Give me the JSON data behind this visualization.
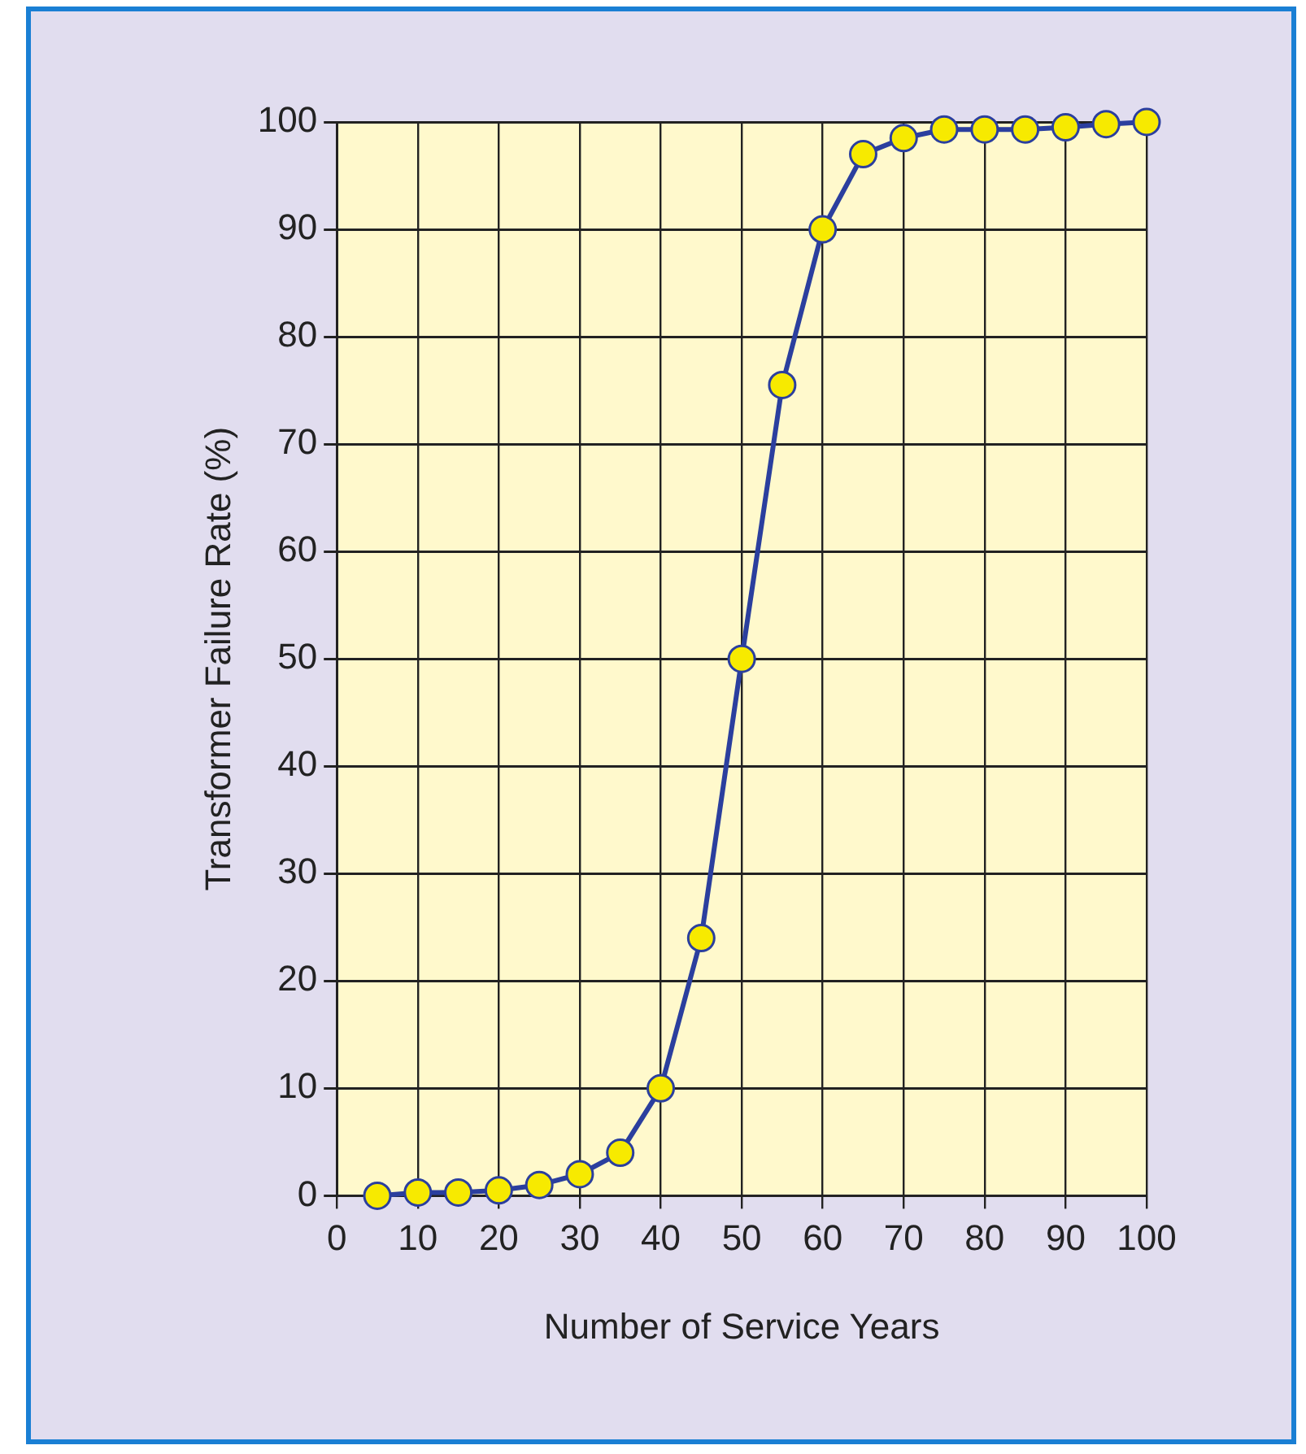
{
  "chart_data": {
    "type": "line",
    "xlabel": "Number of Service Years",
    "ylabel": "Transformer Failure Rate (%)",
    "x": [
      5,
      10,
      15,
      20,
      25,
      30,
      35,
      40,
      45,
      50,
      55,
      60,
      65,
      70,
      75,
      80,
      85,
      90,
      95,
      100
    ],
    "series": [
      {
        "color": "#2b3f9e",
        "values": [
          0,
          0.3,
          0.3,
          0.5,
          1,
          2,
          4,
          10,
          24,
          50,
          75.5,
          90,
          97,
          98.5,
          99.3,
          99.3,
          99.3,
          99.5,
          99.8,
          100
        ]
      }
    ],
    "xlim": [
      0,
      100
    ],
    "xticks": [
      0,
      10,
      20,
      30,
      40,
      50,
      60,
      70,
      80,
      90,
      100
    ],
    "ylim": [
      0,
      100
    ],
    "yticks": [
      0,
      10,
      20,
      30,
      40,
      50,
      60,
      70,
      80,
      90,
      100
    ],
    "grid": true,
    "marker": "circle",
    "line_style": "solid"
  }
}
